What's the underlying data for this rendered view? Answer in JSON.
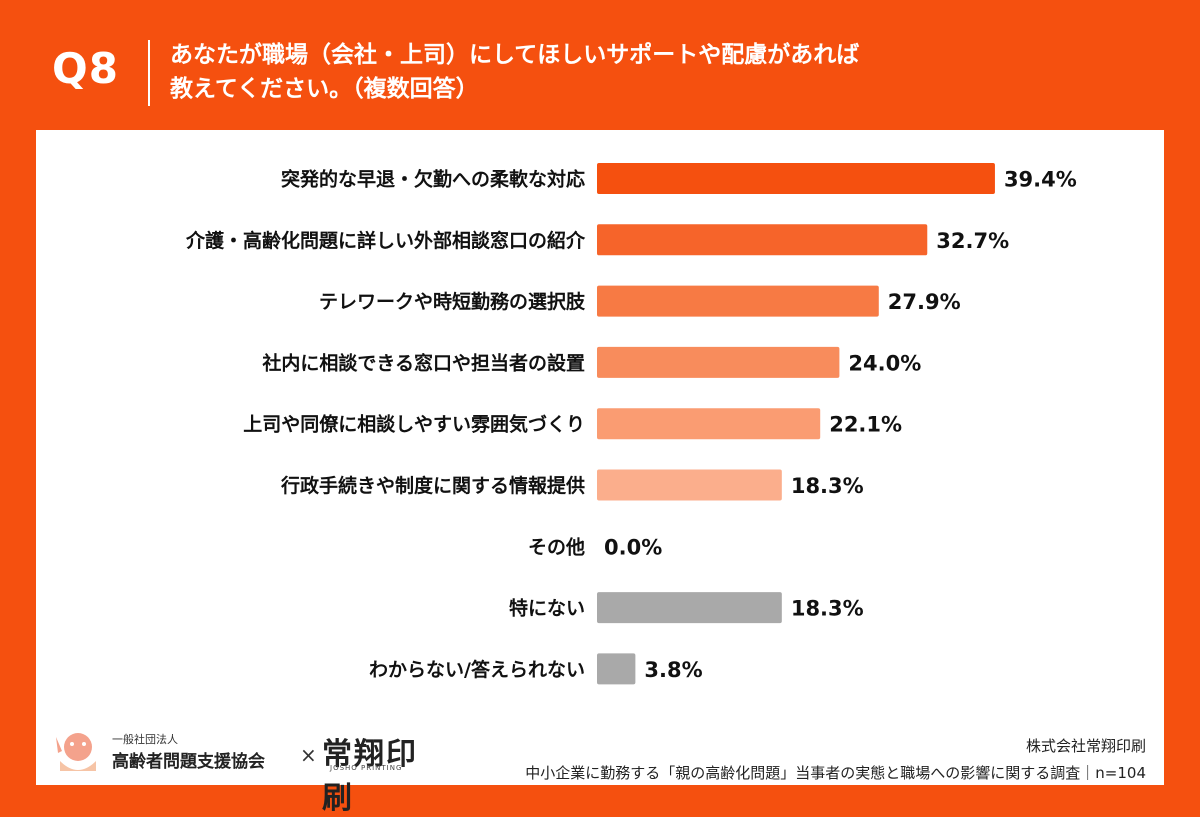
{
  "header": {
    "qnum": "Q8",
    "title_line1": "あなたが職場（会社・上司）にしてほしいサポートや配慮があれば",
    "title_line2": "教えてください。（複数回答）"
  },
  "chart_data": {
    "type": "bar",
    "orientation": "horizontal",
    "value_format": "{v}%",
    "xlim": [
      0,
      40
    ],
    "categories": [
      "突発的な早退・欠勤への柔軟な対応",
      "介護・高齢化問題に詳しい外部相談窓口の紹介",
      "テレワークや時短勤務の選択肢",
      "社内に相談できる窓口や担当者の設置",
      "上司や同僚に相談しやすい雰囲気づくり",
      "行政手続きや制度に関する情報提供",
      "その他",
      "特にない",
      "わからない/答えられない"
    ],
    "values": [
      39.4,
      32.7,
      27.9,
      24.0,
      22.1,
      18.3,
      0.0,
      18.3,
      3.8
    ],
    "value_labels": [
      "39.4%",
      "32.7%",
      "27.9%",
      "24.0%",
      "22.1%",
      "18.3%",
      "0.0%",
      "18.3%",
      "3.8%"
    ],
    "colors": [
      "#f5500f",
      "#f6642a",
      "#f77a44",
      "#f88c5c",
      "#fa9c72",
      "#fbae8c",
      "#fbae8c",
      "#a9a9a9",
      "#a9a9a9"
    ]
  },
  "footer": {
    "org_small": "一般社団法人",
    "org_name": "高齢者問題支援協会",
    "cross": "×",
    "printer_logo": "常翔印刷",
    "printer_logo_sub": "JOSHO PRINTING",
    "company": "株式会社常翔印刷",
    "survey": "中小企業に勤務する「親の高齢化問題」当事者の実態と職場への影響に関する調査｜n=104"
  }
}
